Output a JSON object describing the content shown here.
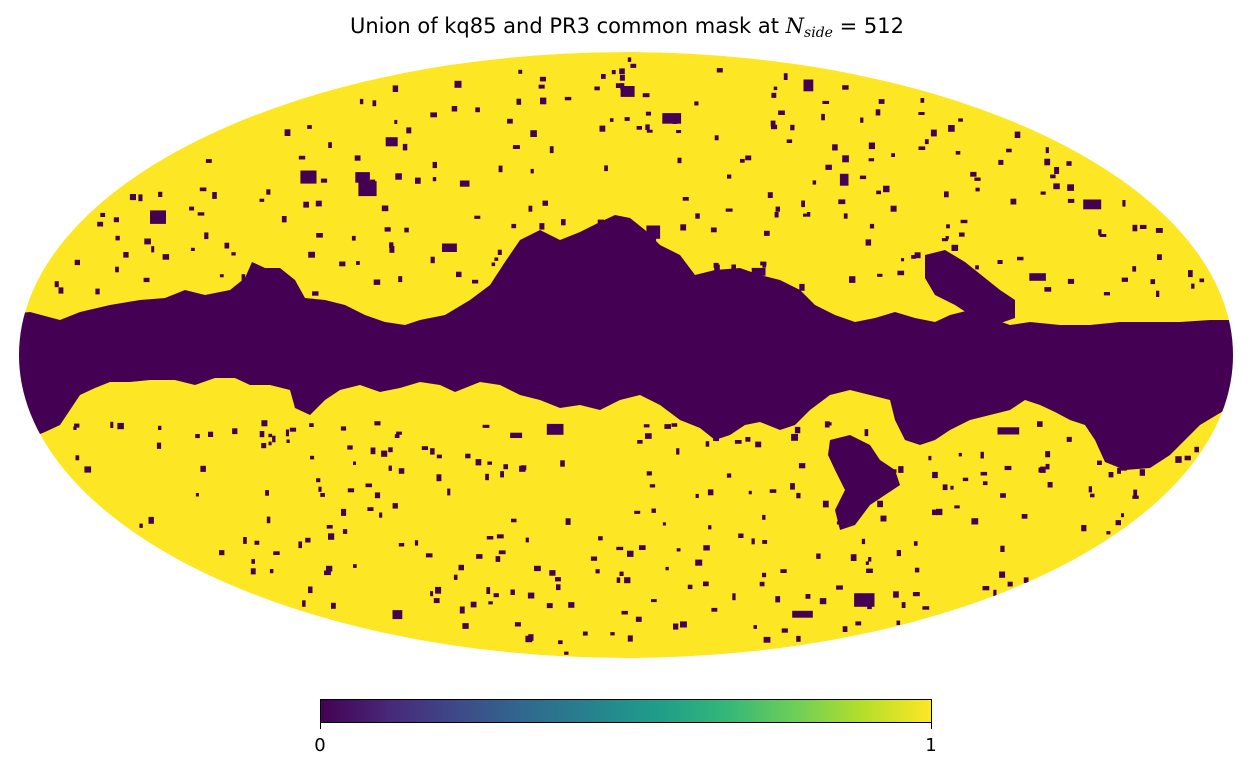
{
  "title": {
    "prefix": "Union of kq85 and PR3 common mask at ",
    "symbol": "N",
    "subscript": "side",
    "suffix": " = 512"
  },
  "map": {
    "projection": "mollweide",
    "masked_color": "#440154",
    "unmasked_color": "#fde725"
  },
  "colorbar": {
    "colormap": "viridis",
    "colors": [
      "#440154",
      "#482878",
      "#3e4989",
      "#31688e",
      "#26828e",
      "#1f9e89",
      "#35b779",
      "#6ece58",
      "#b5de2b",
      "#fde725"
    ],
    "min_label": "0",
    "max_label": "1"
  }
}
